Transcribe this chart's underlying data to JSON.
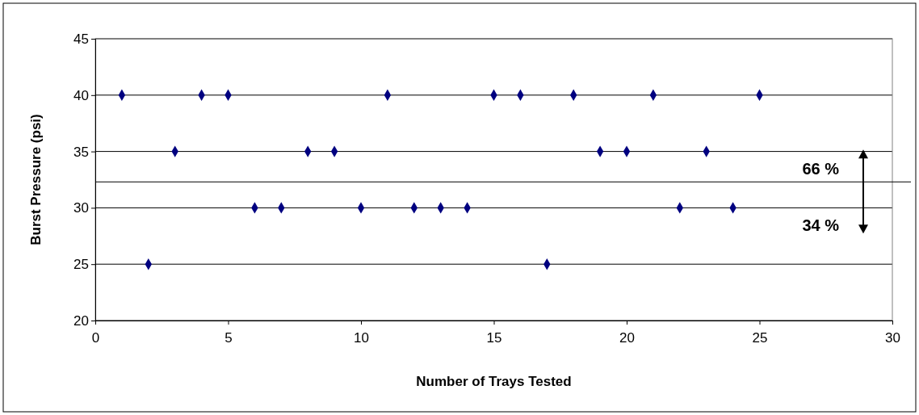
{
  "chart_data": {
    "type": "scatter",
    "xlabel": "Number of Trays Tested",
    "ylabel": "Burst Pressure (psi)",
    "x": [
      1,
      2,
      3,
      4,
      5,
      6,
      7,
      8,
      9,
      10,
      11,
      12,
      13,
      14,
      15,
      16,
      17,
      18,
      19,
      20,
      21,
      22,
      23,
      24,
      25
    ],
    "series": [
      {
        "color": "#000080",
        "values": [
          40,
          25,
          35,
          40,
          40,
          30,
          30,
          35,
          35,
          30,
          40,
          30,
          30,
          30,
          40,
          40,
          25,
          40,
          35,
          35,
          40,
          30,
          35,
          30,
          40
        ]
      }
    ],
    "xlim": [
      0,
      30
    ],
    "xticks": [
      0,
      5,
      10,
      15,
      20,
      25,
      30
    ],
    "ylim": [
      20,
      45
    ],
    "yticks": [
      20,
      25,
      30,
      35,
      40,
      45
    ],
    "grid": "y",
    "marker": "diamond",
    "ref_lines": [
      {
        "axis": "y",
        "value": 32.3,
        "color": "#000000"
      }
    ],
    "annotations": [
      "66 %",
      "34 %"
    ]
  }
}
